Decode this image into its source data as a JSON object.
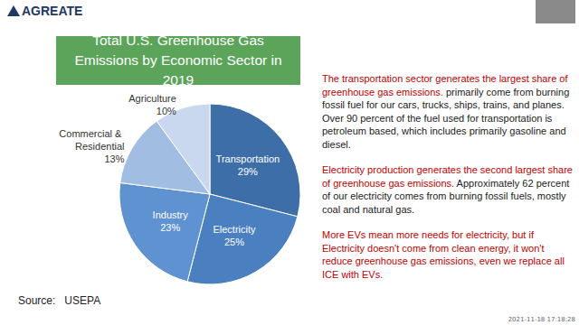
{
  "chart_data": {
    "type": "pie",
    "title": "Total U.S. Greenhouse Gas Emissions by Economic Sector in 2019",
    "categories": [
      "Transportation",
      "Electricity",
      "Industry",
      "Commercial & Residential",
      "Agriculture"
    ],
    "values": [
      29,
      25,
      23,
      13,
      10
    ],
    "value_labels": [
      "29%",
      "25%",
      "23%",
      "13%",
      "10%"
    ],
    "colors": [
      "#3d6ea8",
      "#4b80c0",
      "#5e92d0",
      "#a2bde2",
      "#c9d8ee"
    ],
    "data_labels": true
  },
  "slide": {
    "logo": "AGREATE",
    "paragraphs": [
      [
        {
          "text": "The transportation sector generates the largest share of greenhouse gas emissions.",
          "color": "#c00000"
        },
        {
          "text": " primarily come from burning fossil fuel for our cars, trucks, ships, trains, and planes. Over 90 percent of the fuel used for transportation is petroleum based, which includes primarily gasoline and diesel.",
          "color": "#222222"
        }
      ],
      [
        {
          "text": "Electricity production generates the second largest share of greenhouse gas emissions.",
          "color": "#c00000"
        },
        {
          "text": " Approximately 62 percent of our electricity comes from burning fossil fuels, mostly coal and natural gas.",
          "color": "#222222"
        }
      ],
      [
        {
          "text": "More EVs mean more needs for electricity, but if Electricity doesn't come from clean energy, it won't reduce greenhouse gas emissions, even we replace all ICE with EVs.",
          "color": "#c00000"
        }
      ]
    ],
    "source_label": "Source:",
    "source": "USEPA",
    "timestamp": "2021-11-18 17:18:28"
  }
}
